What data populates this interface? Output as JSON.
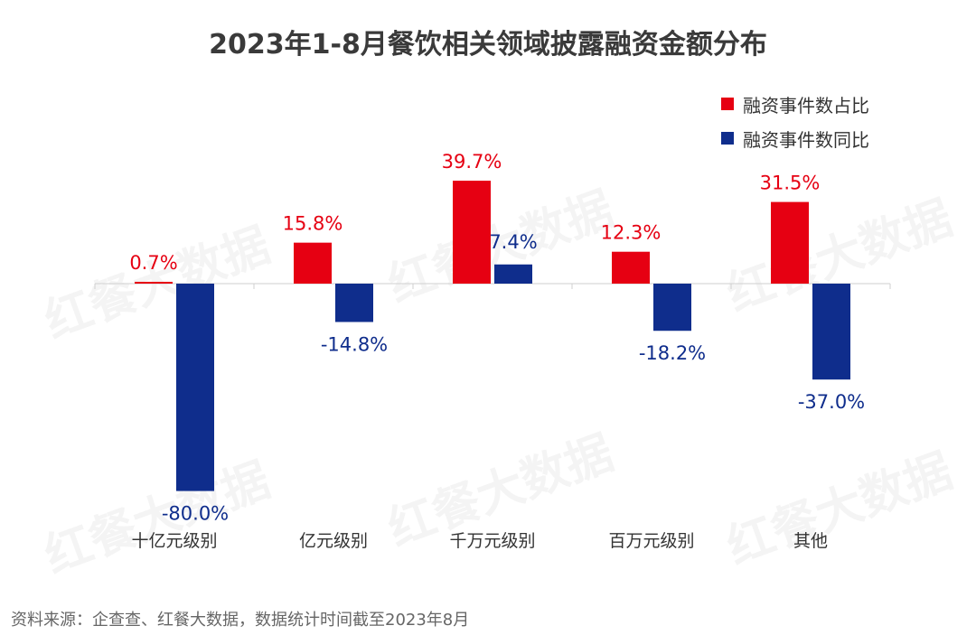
{
  "title": "2023年1-8月餐饮相关领域披露融资金额分布",
  "source_note": "资料来源：企查查、红餐大数据，数据统计时间截至2023年8月",
  "watermark": "红餐大数据",
  "colors": {
    "share": "#e60012",
    "yoy": "#0f2d8c",
    "text": "#3a3a3a"
  },
  "legend": [
    {
      "label": "融资事件数占比",
      "color": "#e60012"
    },
    {
      "label": "融资事件数同比",
      "color": "#0f2d8c"
    }
  ],
  "chart_data": {
    "type": "bar",
    "categories": [
      "十亿元级别",
      "亿元级别",
      "千万元级别",
      "百万元级别",
      "其他"
    ],
    "series": [
      {
        "name": "融资事件数占比",
        "values": [
          0.7,
          15.8,
          39.7,
          12.3,
          31.5
        ],
        "labels": [
          "0.7%",
          "15.8%",
          "39.7%",
          "12.3%",
          "31.5%"
        ]
      },
      {
        "name": "融资事件数同比",
        "values": [
          -80.0,
          -14.8,
          7.4,
          -18.2,
          -37.0
        ],
        "labels": [
          "-80.0%",
          "-14.8%",
          "7.4%",
          "-18.2%",
          "-37.0%"
        ]
      }
    ]
  }
}
